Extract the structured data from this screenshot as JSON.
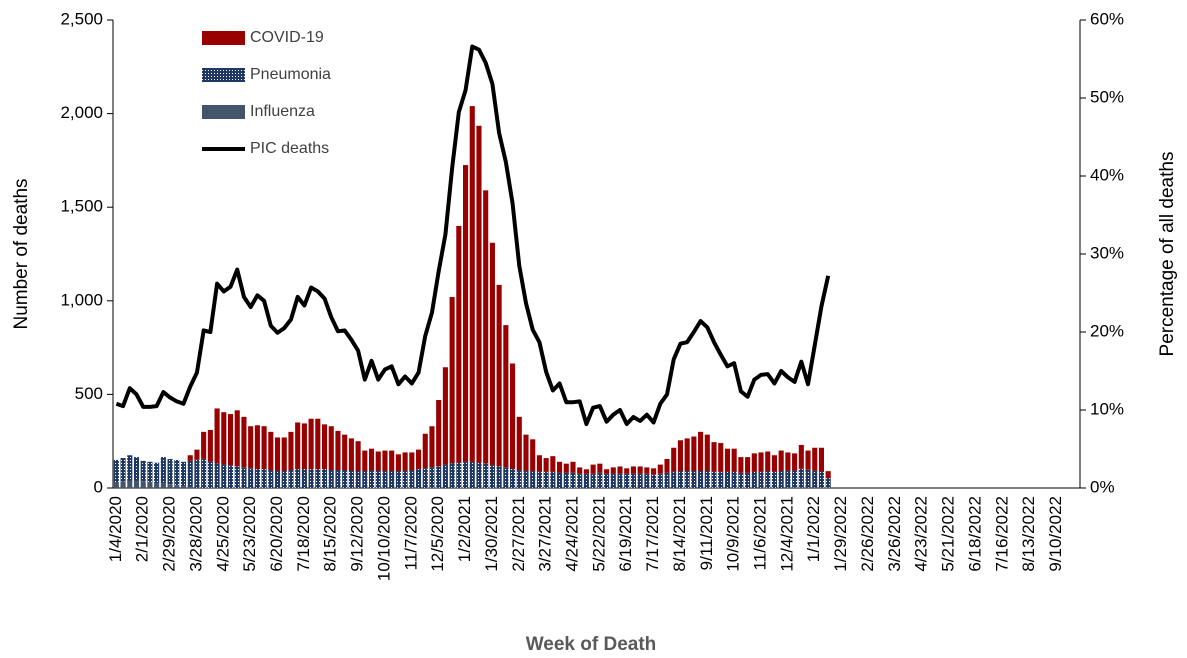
{
  "chart_data": {
    "type": "bar",
    "stacked": true,
    "x_label": "Week of Death",
    "y_label": "Number of deaths",
    "y2_label": "Percentage of all deaths",
    "legend": "top-left",
    "categories": [
      "1/4/2020",
      null,
      null,
      null,
      "2/1/2020",
      null,
      null,
      null,
      "2/29/2020",
      null,
      null,
      null,
      "3/28/2020",
      null,
      null,
      null,
      "4/25/2020",
      null,
      null,
      null,
      "5/23/2020",
      null,
      null,
      null,
      "6/20/2020",
      null,
      null,
      null,
      "7/18/2020",
      null,
      null,
      null,
      "8/15/2020",
      null,
      null,
      null,
      "9/12/2020",
      null,
      null,
      null,
      "10/10/2020",
      null,
      null,
      null,
      "11/7/2020",
      null,
      null,
      null,
      "12/5/2020",
      null,
      null,
      null,
      "1/2/2021",
      null,
      null,
      null,
      "1/30/2021",
      null,
      null,
      null,
      "2/27/2021",
      null,
      null,
      null,
      "3/27/2021",
      null,
      null,
      null,
      "4/24/2021",
      null,
      null,
      null,
      "5/22/2021",
      null,
      null,
      null,
      "6/19/2021",
      null,
      null,
      null,
      "7/17/2021",
      null,
      null,
      null,
      "8/14/2021",
      null,
      null,
      null,
      "9/11/2021",
      null,
      null,
      null,
      "10/9/2021",
      null,
      null,
      null,
      "11/6/2021",
      null,
      null,
      null,
      "12/4/2021",
      null,
      null,
      null,
      "1/1/2022",
      null,
      null,
      null,
      "1/29/2022",
      null,
      null,
      null,
      "2/26/2022",
      null,
      null,
      null,
      "3/26/2022",
      null,
      null,
      null,
      "4/23/2022",
      null,
      null,
      null,
      "5/21/2022",
      null,
      null,
      null,
      "6/18/2022",
      null,
      null,
      null,
      "7/16/2022",
      null,
      null,
      null,
      "8/13/2022",
      null,
      null,
      null,
      "9/10/2022",
      null,
      null,
      null
    ],
    "series": [
      {
        "name": "COVID-19",
        "type": "bar",
        "color": "#990000",
        "values": [
          0,
          0,
          0,
          0,
          0,
          0,
          0,
          0,
          0,
          0,
          0,
          30,
          54,
          144,
          169,
          294,
          279,
          274,
          299,
          269,
          224,
          234,
          229,
          204,
          179,
          179,
          204,
          249,
          244,
          269,
          269,
          239,
          234,
          209,
          189,
          174,
          159,
          109,
          114,
          104,
          109,
          109,
          89,
          99,
          94,
          104,
          184,
          219,
          354,
          519,
          889,
          1264,
          1584,
          1899,
          1799,
          1459,
          1189,
          969,
          759,
          564,
          284,
          194,
          169,
          89,
          74,
          84,
          59,
          49,
          59,
          34,
          24,
          49,
          49,
          24,
          34,
          39,
          29,
          39,
          39,
          34,
          34,
          49,
          74,
          129,
          164,
          174,
          184,
          209,
          194,
          159,
          154,
          124,
          124,
          84,
          84,
          99,
          104,
          104,
          89,
          109,
          97,
          92,
          127,
          102,
          122,
          127,
          37,
          null,
          null,
          null,
          null,
          null,
          null,
          null,
          null,
          null,
          null,
          null,
          null,
          null,
          null,
          null,
          null,
          null,
          null,
          null,
          null,
          null,
          null,
          null,
          null,
          null,
          null,
          null,
          null,
          null,
          null,
          null,
          null,
          null,
          null,
          null,
          null,
          null
        ]
      },
      {
        "name": "Pneumonia",
        "type": "bar",
        "color": "#1f3864",
        "pattern": "dots",
        "values": [
          120,
          125,
          135,
          125,
          110,
          110,
          110,
          140,
          135,
          135,
          130,
          140,
          150,
          155,
          140,
          130,
          125,
          120,
          115,
          110,
          105,
          100,
          100,
          95,
          90,
          90,
          95,
          100,
          100,
          100,
          100,
          100,
          95,
          95,
          95,
          90,
          90,
          90,
          95,
          90,
          90,
          90,
          90,
          90,
          95,
          100,
          105,
          110,
          115,
          125,
          130,
          135,
          140,
          140,
          135,
          130,
          120,
          115,
          110,
          100,
          95,
          90,
          90,
          85,
          85,
          85,
          80,
          80,
          80,
          75,
          75,
          75,
          80,
          75,
          75,
          75,
          75,
          75,
          75,
          75,
          70,
          75,
          80,
          85,
          90,
          90,
          90,
          90,
          90,
          85,
          85,
          85,
          85,
          80,
          80,
          85,
          85,
          90,
          85,
          90,
          90,
          90,
          100,
          95,
          90,
          85,
          50,
          null,
          null,
          null,
          null,
          null,
          null,
          null,
          null,
          null,
          null,
          null,
          null,
          null,
          null,
          null,
          null,
          null,
          null,
          null,
          null,
          null,
          null,
          null,
          null,
          null,
          null,
          null,
          null,
          null,
          null,
          null,
          null,
          null,
          null,
          null,
          null,
          null
        ]
      },
      {
        "name": "Influenza",
        "type": "bar",
        "color": "#44546a",
        "values": [
          30,
          35,
          40,
          40,
          35,
          30,
          25,
          25,
          20,
          15,
          10,
          5,
          1,
          1,
          1,
          1,
          1,
          1,
          1,
          1,
          1,
          1,
          1,
          1,
          1,
          1,
          1,
          1,
          1,
          1,
          1,
          1,
          1,
          1,
          1,
          1,
          1,
          1,
          1,
          1,
          1,
          1,
          1,
          1,
          1,
          1,
          1,
          1,
          1,
          1,
          1,
          1,
          1,
          1,
          1,
          1,
          1,
          1,
          1,
          1,
          1,
          1,
          1,
          1,
          1,
          1,
          1,
          1,
          1,
          1,
          1,
          1,
          1,
          1,
          1,
          1,
          1,
          1,
          1,
          1,
          1,
          1,
          1,
          1,
          1,
          1,
          1,
          1,
          1,
          1,
          1,
          1,
          1,
          1,
          1,
          1,
          1,
          1,
          1,
          1,
          3,
          3,
          3,
          3,
          3,
          3,
          3,
          null,
          null,
          null,
          null,
          null,
          null,
          null,
          null,
          null,
          null,
          null,
          null,
          null,
          null,
          null,
          null,
          null,
          null,
          null,
          null,
          null,
          null,
          null,
          null,
          null,
          null,
          null,
          null,
          null,
          null,
          null,
          null,
          null,
          null,
          null,
          null,
          null
        ]
      },
      {
        "name": "PIC deaths",
        "type": "line",
        "axis": "y2",
        "color": "#000000",
        "values": [
          10.8,
          10.5,
          12.8,
          12,
          10.4,
          10.4,
          10.5,
          12.3,
          11.6,
          11.1,
          10.8,
          13,
          14.8,
          20.2,
          20,
          26.2,
          25.2,
          25.8,
          28,
          24.5,
          23.2,
          24.7,
          24,
          20.8,
          19.9,
          20.5,
          21.6,
          24.5,
          23.4,
          25.7,
          25.2,
          24.3,
          21.9,
          20.1,
          20.2,
          19,
          17.6,
          13.9,
          16.3,
          13.9,
          15.2,
          15.6,
          13.3,
          14.3,
          13.4,
          14.8,
          19.5,
          22.5,
          27.8,
          32.5,
          41,
          48.2,
          51,
          56.6,
          56.2,
          54.5,
          51.8,
          45.5,
          41.8,
          36.5,
          28.5,
          23.7,
          20.3,
          18.7,
          14.9,
          12.5,
          13.4,
          11,
          11,
          11.1,
          8.2,
          10.3,
          10.5,
          8.5,
          9.4,
          10,
          8.2,
          9.1,
          8.6,
          9.4,
          8.4,
          10.8,
          12,
          16.5,
          18.5,
          18.7,
          20,
          21.4,
          20.6,
          18.7,
          17.1,
          15.6,
          16,
          12.4,
          11.7,
          13.9,
          14.5,
          14.6,
          13.4,
          15,
          14.2,
          13.6,
          16.2,
          13.3,
          18.3,
          23.3,
          27.2,
          null,
          null,
          null,
          null,
          null,
          null,
          null,
          null,
          null,
          null,
          null,
          null,
          null,
          null,
          null,
          null,
          null,
          null,
          null,
          null,
          null,
          null,
          null,
          null,
          null,
          null,
          null,
          null,
          null,
          null,
          null,
          null,
          null,
          null,
          null,
          null,
          null
        ]
      }
    ],
    "ylim": [
      0,
      2500
    ],
    "yticks": [
      0,
      {
        "value": 500,
        "label": "500"
      },
      {
        "value": 1000,
        "label": "1,000"
      },
      {
        "value": 1500,
        "label": "1,500"
      },
      {
        "value": 2000,
        "label": "2,000"
      },
      {
        "value": 2500,
        "label": "2,500"
      }
    ],
    "y2lim": [
      0,
      60
    ],
    "y2ticks": [
      {
        "value": 0,
        "label": "0%"
      },
      {
        "value": 10,
        "label": "10%"
      },
      {
        "value": 20,
        "label": "20%"
      },
      {
        "value": 30,
        "label": "30%"
      },
      {
        "value": 40,
        "label": "40%"
      },
      {
        "value": 50,
        "label": "50%"
      },
      {
        "value": 60,
        "label": "60%"
      }
    ],
    "grid": false
  }
}
